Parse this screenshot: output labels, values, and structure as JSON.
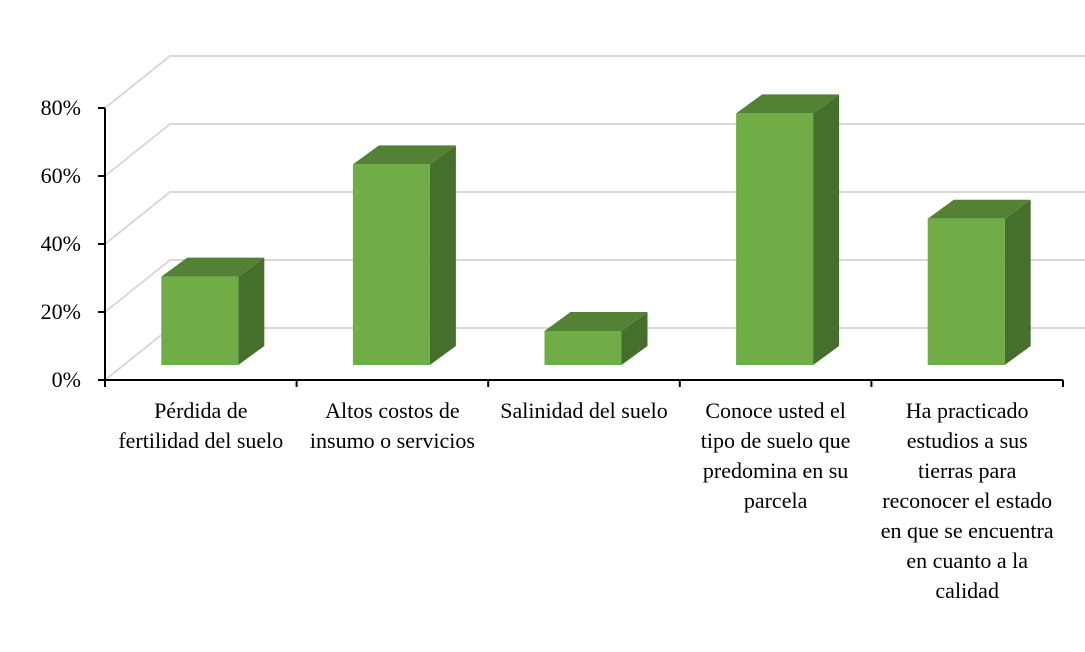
{
  "chart_data": {
    "type": "bar",
    "style": "3d-column",
    "categories": [
      "Pérdida de fertilidad del suelo",
      "Altos costos de insumo o servicios",
      "Salinidad del suelo",
      "Conoce usted el tipo de suelo que predomina en su parcela",
      "Ha practicado estudios a sus tierras para reconocer el estado en que se encuentra en cuanto a la calidad"
    ],
    "values": [
      26,
      59,
      10,
      74,
      43
    ],
    "yticks": [
      "0%",
      "20%",
      "40%",
      "60%",
      "80%"
    ],
    "ylim": [
      0,
      80
    ],
    "grid": true,
    "legend": "none",
    "title": "",
    "xlabel": "",
    "ylabel": ""
  },
  "colors": {
    "bar_front": "#70ad47",
    "bar_top": "#548235",
    "bar_side": "#466f2d",
    "grid": "#d9d9d9",
    "axis": "#000000"
  }
}
